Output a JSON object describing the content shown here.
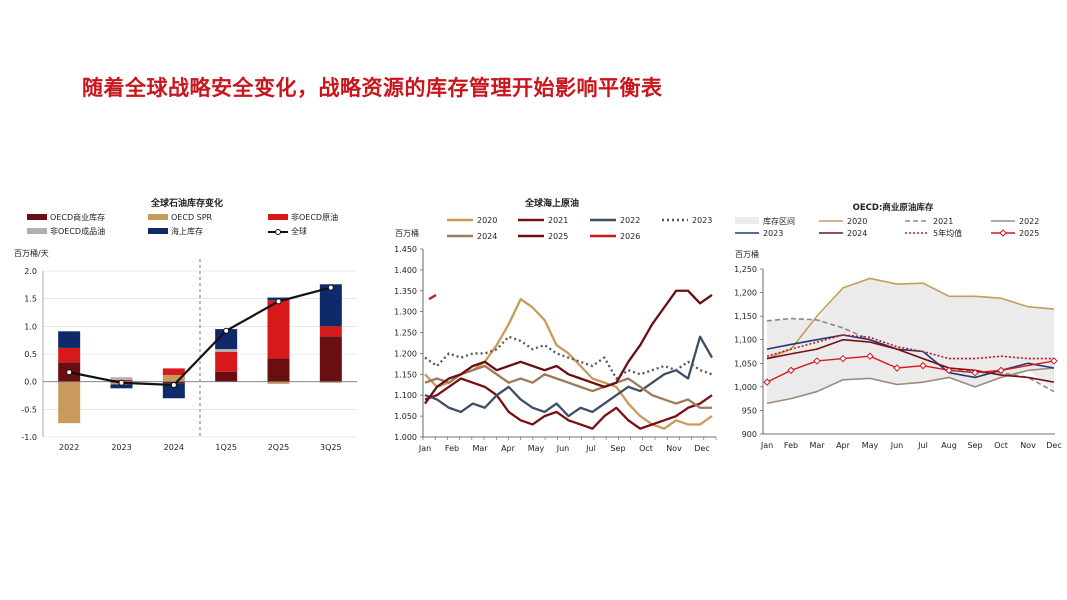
{
  "page_title": "随着全球战略安全变化，战略资源的库存管理开始影响平衡表",
  "chart_data": [
    {
      "type": "bar",
      "title": "全球石油库存变化",
      "ylabel": "百万桶/天",
      "ylim": [
        -1.0,
        2.0
      ],
      "yticks": [
        "-1.0",
        "-0.5",
        "0.0",
        "0.5",
        "1.0",
        "1.5",
        "2.0"
      ],
      "categories": [
        "2022",
        "2023",
        "2024",
        "1Q25",
        "2Q25",
        "3Q25"
      ],
      "stacked": true,
      "series": [
        {
          "name": "OECD商业库存",
          "color": "#6b0e12",
          "values": [
            0.35,
            -0.02,
            -0.03,
            0.18,
            0.42,
            0.82
          ]
        },
        {
          "name": "OECD SPR",
          "color": "#c89b5c",
          "values": [
            -0.75,
            -0.03,
            0.12,
            0.0,
            -0.04,
            -0.02
          ]
        },
        {
          "name": "非OECD原油",
          "color": "#d7191c",
          "values": [
            0.26,
            0.03,
            0.12,
            0.36,
            1.05,
            0.18
          ]
        },
        {
          "name": "非OECD成品油",
          "color": "#b0b0b0",
          "values": [
            0.0,
            0.05,
            0.0,
            0.05,
            0.0,
            0.0
          ]
        },
        {
          "name": "海上库存",
          "color": "#0f2a6b",
          "values": [
            0.3,
            -0.07,
            -0.27,
            0.36,
            0.05,
            0.76
          ]
        }
      ],
      "line": {
        "name": "全球",
        "color": "#111111",
        "values": [
          0.17,
          -0.02,
          -0.06,
          0.92,
          1.45,
          1.7
        ]
      },
      "divider_after": "2024"
    },
    {
      "type": "line",
      "title": "全球海上原油",
      "ylabel": "百万桶",
      "ylim": [
        1.0,
        1.45
      ],
      "yticks": [
        "1.000",
        "1.050",
        "1.100",
        "1.150",
        "1.200",
        "1.250",
        "1.300",
        "1.350",
        "1.400",
        "1.450"
      ],
      "xticks": [
        "Jan",
        "Feb",
        "Mar",
        "Apr",
        "May",
        "Jun",
        "Jul",
        "Sep",
        "Oct",
        "Nov",
        "Dec"
      ],
      "series": [
        {
          "name": "2020",
          "color": "#c89b5c",
          "dash": "",
          "values": [
            1.15,
            1.12,
            1.13,
            1.15,
            1.16,
            1.18,
            1.22,
            1.27,
            1.33,
            1.31,
            1.28,
            1.22,
            1.2,
            1.17,
            1.14,
            1.13,
            1.12,
            1.08,
            1.05,
            1.03,
            1.02,
            1.04,
            1.03,
            1.03,
            1.05
          ]
        },
        {
          "name": "2021",
          "color": "#7a0f14",
          "dash": "",
          "values": [
            1.09,
            1.1,
            1.12,
            1.14,
            1.13,
            1.12,
            1.1,
            1.06,
            1.04,
            1.03,
            1.05,
            1.06,
            1.04,
            1.03,
            1.02,
            1.05,
            1.07,
            1.04,
            1.02,
            1.03,
            1.04,
            1.05,
            1.07,
            1.08,
            1.1
          ]
        },
        {
          "name": "2022",
          "color": "#3d4f66",
          "dash": "",
          "values": [
            1.1,
            1.09,
            1.07,
            1.06,
            1.08,
            1.07,
            1.1,
            1.12,
            1.09,
            1.07,
            1.06,
            1.08,
            1.05,
            1.07,
            1.06,
            1.08,
            1.1,
            1.12,
            1.11,
            1.13,
            1.15,
            1.16,
            1.14,
            1.24,
            1.19
          ]
        },
        {
          "name": "2023",
          "color": "#555555",
          "dash": "2,3",
          "values": [
            1.19,
            1.17,
            1.2,
            1.19,
            1.2,
            1.2,
            1.21,
            1.24,
            1.23,
            1.21,
            1.22,
            1.2,
            1.19,
            1.18,
            1.17,
            1.19,
            1.14,
            1.16,
            1.15,
            1.16,
            1.17,
            1.16,
            1.18,
            1.16,
            1.15
          ]
        },
        {
          "name": "2024",
          "color": "#9c7b5b",
          "dash": "",
          "values": [
            1.13,
            1.14,
            1.13,
            1.15,
            1.16,
            1.17,
            1.15,
            1.13,
            1.14,
            1.13,
            1.15,
            1.14,
            1.13,
            1.12,
            1.11,
            1.12,
            1.13,
            1.14,
            1.12,
            1.1,
            1.09,
            1.08,
            1.09,
            1.07,
            1.07
          ]
        },
        {
          "name": "2025",
          "color": "#6b0e12",
          "dash": "",
          "values": [
            1.08,
            1.12,
            1.14,
            1.15,
            1.17,
            1.18,
            1.16,
            1.17,
            1.18,
            1.17,
            1.16,
            1.17,
            1.15,
            1.14,
            1.13,
            1.12,
            1.13,
            1.18,
            1.22,
            1.27,
            1.31,
            1.35,
            1.35,
            1.32,
            1.34
          ]
        },
        {
          "name": "2026",
          "color": "#c8161d",
          "dash": "",
          "values": [
            1.33,
            1.34
          ]
        }
      ]
    },
    {
      "type": "line",
      "title": "OECD:商业原油库存",
      "ylabel": "百万桶",
      "ylim": [
        900,
        1250
      ],
      "yticks": [
        "900",
        "950",
        "1,000",
        "1,050",
        "1,100",
        "1,150",
        "1,200",
        "1,250"
      ],
      "xticks": [
        "Jan",
        "Feb",
        "Mar",
        "Apr",
        "May",
        "Jun",
        "Jul",
        "Aug",
        "Sep",
        "Oct",
        "Nov",
        "Dec"
      ],
      "band": {
        "name": "库存区间",
        "color": "#ebebeb",
        "upper": [
          1140,
          1145,
          1142,
          1210,
          1230,
          1218,
          1220,
          1192,
          1192,
          1188,
          1170,
          1165
        ],
        "lower": [
          965,
          975,
          990,
          1015,
          1018,
          1005,
          1010,
          1020,
          1000,
          1020,
          1035,
          995
        ]
      },
      "series": [
        {
          "name": "2020",
          "color": "#c89b5c",
          "dash": "",
          "values": [
            1060,
            1080,
            1150,
            1210,
            1230,
            1218,
            1220,
            1192,
            1192,
            1188,
            1170,
            1165
          ]
        },
        {
          "name": "2021",
          "color": "#888888",
          "dash": "5,3",
          "values": [
            1140,
            1145,
            1142,
            1125,
            1100,
            1080,
            1060,
            1040,
            1030,
            1030,
            1020,
            990
          ]
        },
        {
          "name": "2022",
          "color": "#9c8a7a",
          "dash": "",
          "values": [
            965,
            975,
            990,
            1015,
            1018,
            1005,
            1010,
            1020,
            1000,
            1020,
            1035,
            1040
          ]
        },
        {
          "name": "2023",
          "color": "#1f3b7a",
          "dash": "",
          "values": [
            1080,
            1090,
            1100,
            1110,
            1100,
            1080,
            1075,
            1030,
            1020,
            1035,
            1050,
            1040
          ]
        },
        {
          "name": "2024",
          "color": "#7a0f14",
          "dash": "",
          "values": [
            1060,
            1070,
            1080,
            1100,
            1095,
            1080,
            1060,
            1040,
            1035,
            1025,
            1020,
            1010
          ]
        },
        {
          "name": "5年均值",
          "color": "#c8161d",
          "dash": "2,2",
          "values": [
            1065,
            1080,
            1095,
            1110,
            1105,
            1085,
            1075,
            1060,
            1060,
            1065,
            1060,
            1060
          ]
        },
        {
          "name": "2025",
          "color": "#d7191c",
          "dash": "",
          "marker": true,
          "values": [
            1010,
            1035,
            1055,
            1060,
            1065,
            1040,
            1045,
            1035,
            1030,
            1035,
            null,
            1055
          ]
        }
      ]
    }
  ]
}
